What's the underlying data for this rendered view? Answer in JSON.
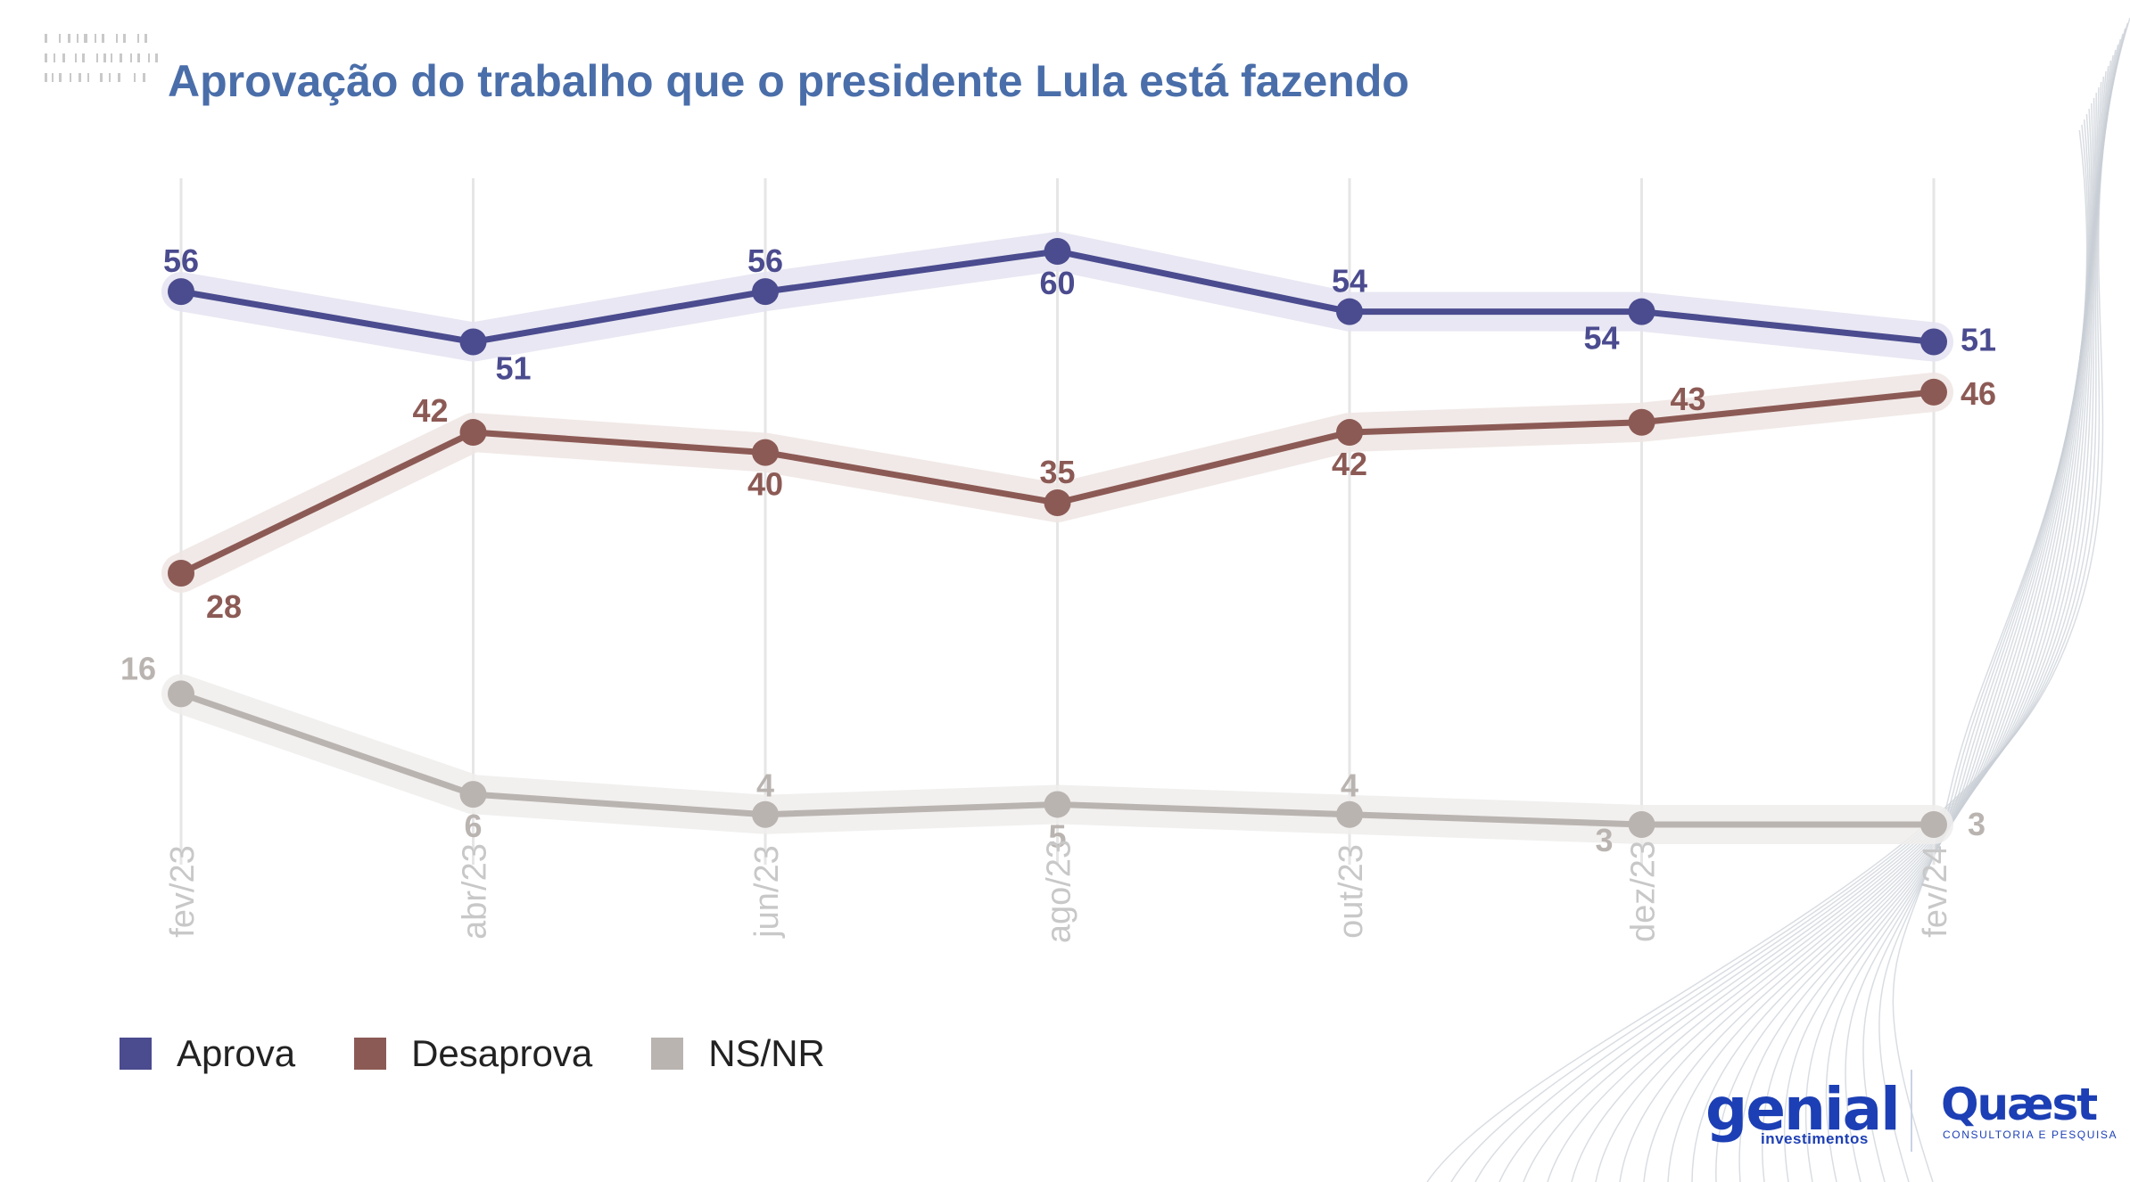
{
  "title": "Aprovação do trabalho que o presidente Lula está fazendo",
  "colors": {
    "aprova": "#4b4b8f",
    "desaprova": "#8c5a55",
    "nsnr": "#bab4b1",
    "title": "#4a6ea9",
    "gridline": "#e6e6e6",
    "tick_label": "#c8c8c8"
  },
  "chart_data": {
    "type": "line",
    "title": "Aprovação do trabalho que o presidente Lula está fazendo",
    "xlabel": "",
    "ylabel": "",
    "categories": [
      "fev/23",
      "abr/23",
      "jun/23",
      "ago/23",
      "out/23",
      "dez/23",
      "fev/24"
    ],
    "series": [
      {
        "name": "Aprova",
        "values": [
          56,
          51,
          56,
          60,
          54,
          54,
          51
        ]
      },
      {
        "name": "Desaprova",
        "values": [
          28,
          42,
          40,
          35,
          42,
          43,
          46
        ]
      },
      {
        "name": "NS/NR",
        "values": [
          16,
          6,
          4,
          5,
          4,
          3,
          3
        ]
      }
    ],
    "ylim": [
      0,
      65
    ],
    "grid": "vertical",
    "legend_position": "bottom-left"
  },
  "legend": [
    {
      "label": "Aprova"
    },
    {
      "label": "Desaprova"
    },
    {
      "label": "NS/NR"
    }
  ],
  "logos": {
    "genial_main": "genial",
    "genial_sub": "investimentos",
    "quaest_main": "Quæst",
    "quaest_sub": "CONSULTORIA E PESQUISA"
  }
}
